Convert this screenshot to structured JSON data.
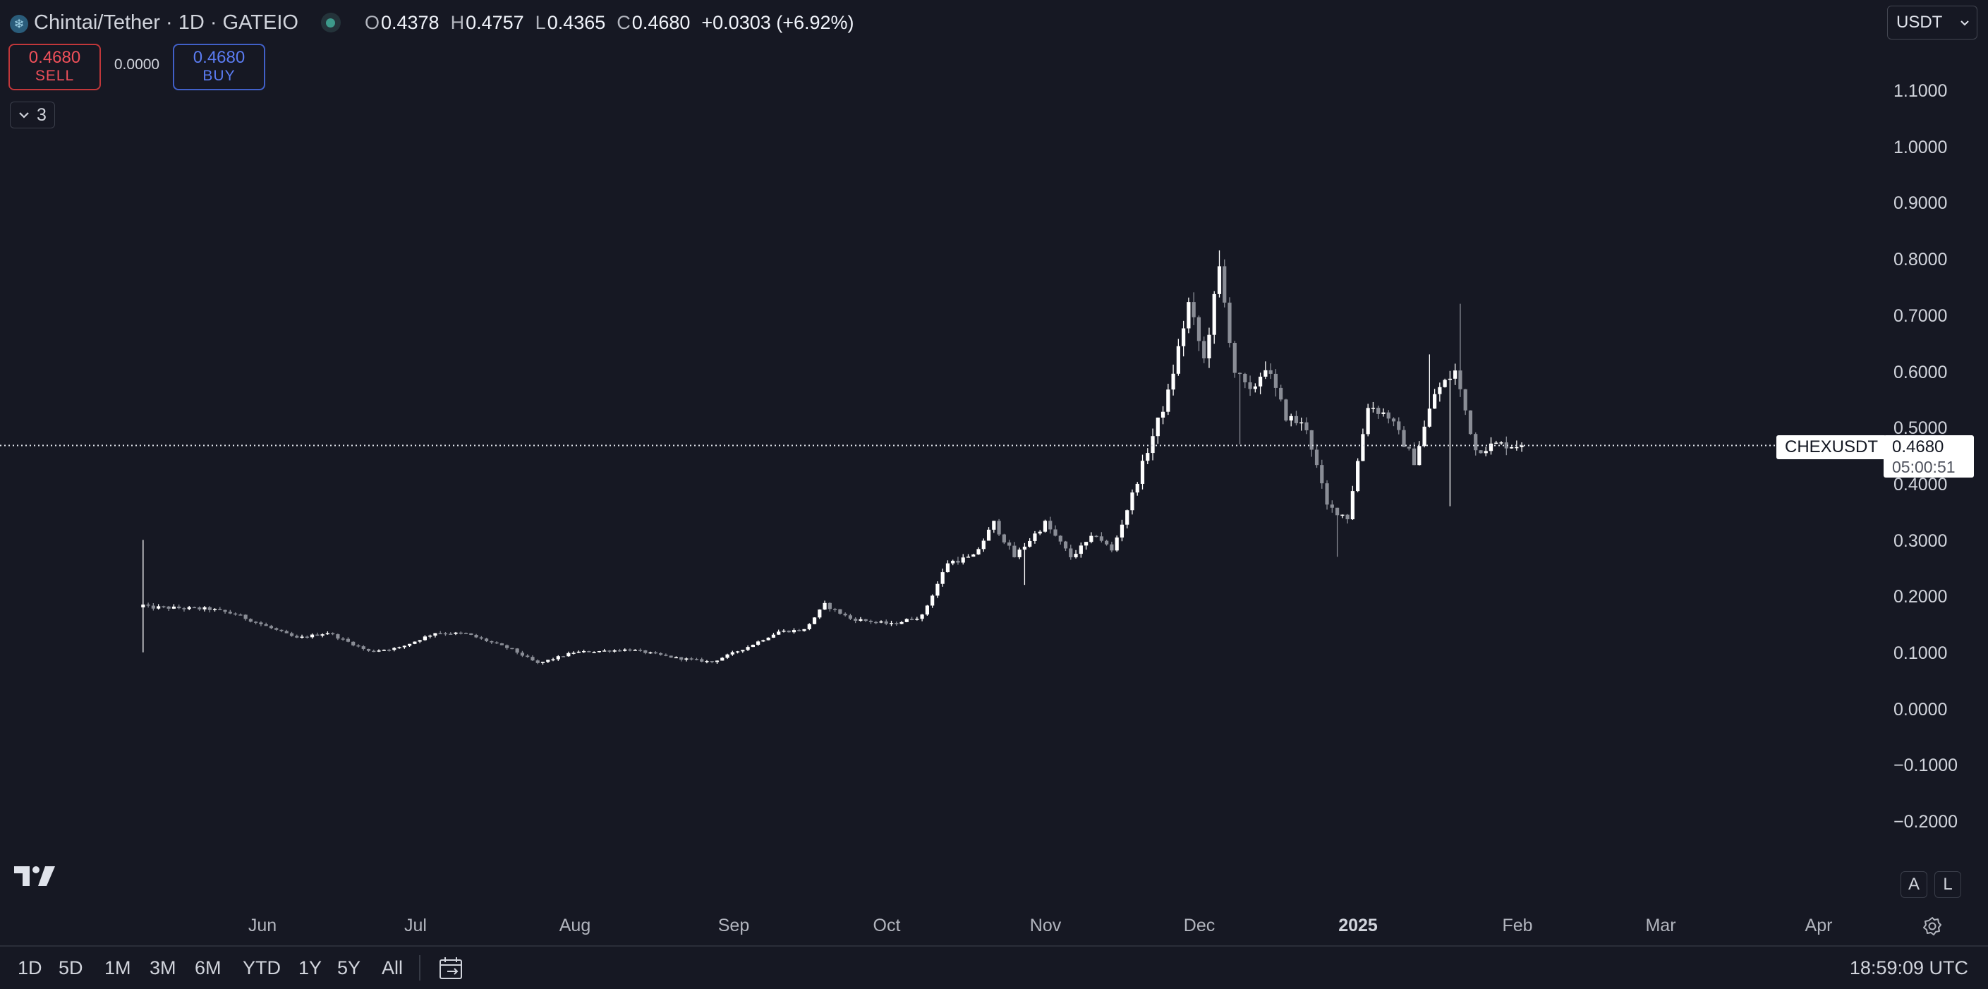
{
  "header": {
    "symbol_icon": "snowflake-coin-icon",
    "title": "Chintai/Tether · 1D · GATEIO",
    "ohlc": [
      {
        "label": "O",
        "value": "0.4378"
      },
      {
        "label": "H",
        "value": "0.4757"
      },
      {
        "label": "L",
        "value": "0.4365"
      },
      {
        "label": "C",
        "value": "0.4680"
      }
    ],
    "change": "+0.0303 (+6.92%)"
  },
  "trade": {
    "sell_price": "0.4680",
    "sell_label": "SELL",
    "spread": "0.0000",
    "buy_price": "0.4680",
    "buy_label": "BUY"
  },
  "indicators": {
    "count": "3",
    "icon": "chevron-down-icon"
  },
  "currency_select": {
    "value": "USDT"
  },
  "price_axis": {
    "labels": [
      "1.1000",
      "1.0000",
      "0.9000",
      "0.8000",
      "0.7000",
      "0.6000",
      "0.5000",
      "0.4000",
      "0.3000",
      "0.2000",
      "0.1000",
      "0.0000",
      "−0.1000",
      "−0.2000"
    ]
  },
  "last_price": {
    "symbol": "CHEXUSDT",
    "price": "0.4680",
    "countdown": "05:00:51",
    "value": 0.468
  },
  "time_axis": {
    "labels": [
      {
        "text": "Jun",
        "bold": false
      },
      {
        "text": "Jul",
        "bold": false
      },
      {
        "text": "Aug",
        "bold": false
      },
      {
        "text": "Sep",
        "bold": false
      },
      {
        "text": "Oct",
        "bold": false
      },
      {
        "text": "Nov",
        "bold": false
      },
      {
        "text": "Dec",
        "bold": false
      },
      {
        "text": "2025",
        "bold": true
      },
      {
        "text": "Feb",
        "bold": false
      },
      {
        "text": "Mar",
        "bold": false
      },
      {
        "text": "Apr",
        "bold": false
      }
    ]
  },
  "scale_buttons": {
    "auto": "A",
    "log": "L"
  },
  "bottom_bar": {
    "ranges": [
      "1D",
      "5D",
      "1M",
      "3M",
      "6M",
      "YTD",
      "1Y",
      "5Y",
      "All"
    ],
    "goto_icon": "calendar-goto-icon",
    "settings_icon": "gear-icon",
    "clock": "18:59:09 UTC"
  },
  "colors": {
    "background": "#161823",
    "candle_up": "#ffffff",
    "candle_down": "#8a8d96",
    "sell": "#f0505a",
    "buy": "#5b7cf2"
  },
  "chart_data": {
    "type": "candlestick",
    "symbol": "CHEXUSDT",
    "interval": "1D",
    "exchange": "GATEIO",
    "ylim": [
      -0.2,
      1.1
    ],
    "x_range": [
      "2024-05-01",
      "2025-04-15"
    ],
    "start_date": "2024-05-23",
    "end_date": "2025-02-16",
    "anchors": [
      [
        "2024-05-23",
        0.18,
        0.3,
        0.1
      ],
      [
        "2024-05-26",
        0.18
      ],
      [
        "2024-06-05",
        0.177
      ],
      [
        "2024-06-10",
        0.168
      ],
      [
        "2024-06-22",
        0.125
      ],
      [
        "2024-06-28",
        0.135
      ],
      [
        "2024-07-06",
        0.102
      ],
      [
        "2024-07-12",
        0.108
      ],
      [
        "2024-07-19",
        0.135
      ],
      [
        "2024-07-25",
        0.133
      ],
      [
        "2024-08-03",
        0.105
      ],
      [
        "2024-08-08",
        0.08
      ],
      [
        "2024-08-15",
        0.1
      ],
      [
        "2024-08-26",
        0.105
      ],
      [
        "2024-09-04",
        0.09
      ],
      [
        "2024-09-11",
        0.083
      ],
      [
        "2024-09-18",
        0.11
      ],
      [
        "2024-09-24",
        0.137
      ],
      [
        "2024-09-29",
        0.14
      ],
      [
        "2024-10-03",
        0.185
      ],
      [
        "2024-10-08",
        0.16
      ],
      [
        "2024-10-16",
        0.15
      ],
      [
        "2024-10-22",
        0.165
      ],
      [
        "2024-10-27",
        0.26
      ],
      [
        "2024-11-01",
        0.27
      ],
      [
        "2024-11-05",
        0.33
      ],
      [
        "2024-11-09",
        0.27
      ],
      [
        "2024-11-15",
        0.33
      ],
      [
        "2024-11-20",
        0.27
      ],
      [
        "2024-11-25",
        0.31
      ],
      [
        "2024-11-28",
        0.28
      ],
      [
        "2024-12-02",
        0.38
      ],
      [
        "2024-12-05",
        0.46
      ],
      [
        "2024-12-09",
        0.56
      ],
      [
        "2024-12-13",
        0.72
      ],
      [
        "2024-12-16",
        0.62
      ],
      [
        "2024-12-19",
        0.78
      ],
      [
        "2024-12-22",
        0.6
      ],
      [
        "2024-12-25",
        0.56
      ],
      [
        "2024-12-28",
        0.61
      ],
      [
        "2025-01-01",
        0.52
      ],
      [
        "2025-01-05",
        0.5
      ],
      [
        "2025-01-09",
        0.36
      ],
      [
        "2025-01-13",
        0.34
      ],
      [
        "2025-01-17",
        0.54
      ],
      [
        "2025-01-21",
        0.52
      ],
      [
        "2025-01-26",
        0.44
      ],
      [
        "2025-01-30",
        0.56
      ],
      [
        "2025-02-03",
        0.6
      ],
      [
        "2025-02-07",
        0.46
      ],
      [
        "2025-02-11",
        0.47
      ],
      [
        "2025-02-16",
        0.468
      ]
    ],
    "spikes": [
      [
        "2024-12-19",
        0.815
      ],
      [
        "2025-02-04",
        0.72
      ],
      [
        "2025-01-29",
        0.63
      ],
      [
        "2025-02-02",
        0.36
      ],
      [
        "2025-01-11",
        0.27
      ],
      [
        "2024-11-11",
        0.22
      ],
      [
        "2024-12-23",
        0.47
      ]
    ]
  }
}
